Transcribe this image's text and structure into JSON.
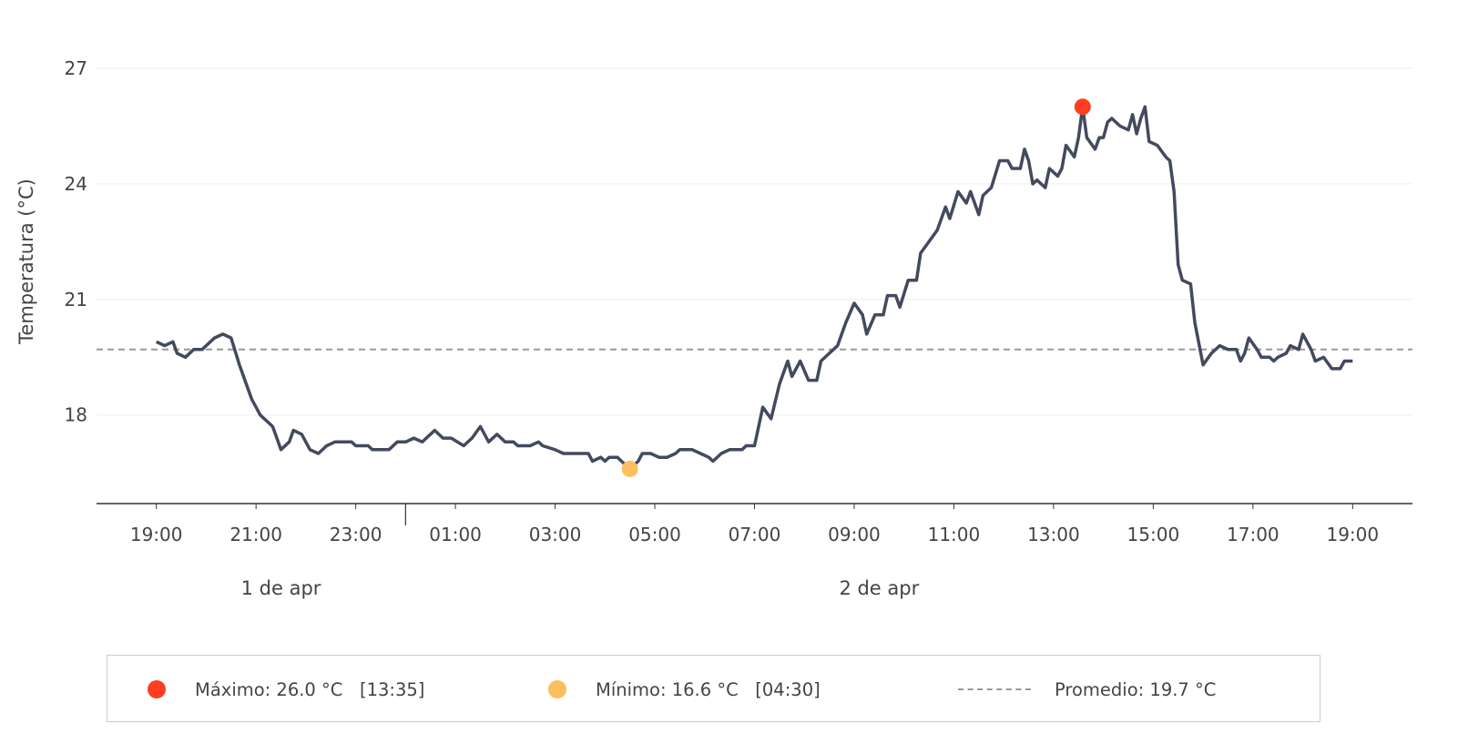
{
  "chart_data": {
    "type": "line",
    "ylabel": "Temperatura (°C)",
    "xlabel": "",
    "ylim": [
      15.7,
      28.3
    ],
    "xlim": [
      "04-01T17:48",
      "04-02T20:12"
    ],
    "yticks": [
      18,
      21,
      24,
      27
    ],
    "xtick_labels": [
      "19:00",
      "21:00",
      "23:00",
      "01:00",
      "03:00",
      "05:00",
      "07:00",
      "09:00",
      "11:00",
      "13:00",
      "15:00",
      "17:00",
      "19:00"
    ],
    "xtick_times": [
      "04-01T19:00",
      "04-01T21:00",
      "04-01T23:00",
      "04-02T01:00",
      "04-02T03:00",
      "04-02T05:00",
      "04-02T07:00",
      "04-02T09:00",
      "04-02T11:00",
      "04-02T13:00",
      "04-02T15:00",
      "04-02T17:00",
      "04-02T19:00"
    ],
    "date_labels": [
      {
        "label": "1 de apr",
        "center": "04-01T21:30"
      },
      {
        "label": "2 de apr",
        "center": "04-02T09:30"
      }
    ],
    "day_boundary": "04-02T00:00",
    "grid": "horizontal",
    "legend_placement": "bottom",
    "colors": {
      "line": "#434a5e",
      "max": "#ff3d21",
      "min": "#fdbe5e",
      "mean": "#999999",
      "grid": "#eeeeee"
    },
    "series": [
      {
        "points": [
          [
            "04-01T19:00",
            19.9
          ],
          [
            "04-01T19:10",
            19.8
          ],
          [
            "04-01T19:20",
            19.9
          ],
          [
            "04-01T19:25",
            19.6
          ],
          [
            "04-01T19:35",
            19.5
          ],
          [
            "04-01T19:45",
            19.7
          ],
          [
            "04-01T19:55",
            19.7
          ],
          [
            "04-01T20:10",
            20.0
          ],
          [
            "04-01T20:20",
            20.1
          ],
          [
            "04-01T20:30",
            20.0
          ],
          [
            "04-01T20:40",
            19.3
          ],
          [
            "04-01T20:50",
            18.7
          ],
          [
            "04-01T20:55",
            18.4
          ],
          [
            "04-01T21:00",
            18.2
          ],
          [
            "04-01T21:05",
            18.0
          ],
          [
            "04-01T21:20",
            17.7
          ],
          [
            "04-01T21:25",
            17.4
          ],
          [
            "04-01T21:30",
            17.1
          ],
          [
            "04-01T21:40",
            17.3
          ],
          [
            "04-01T21:45",
            17.6
          ],
          [
            "04-01T21:55",
            17.5
          ],
          [
            "04-01T22:05",
            17.1
          ],
          [
            "04-01T22:15",
            17.0
          ],
          [
            "04-01T22:25",
            17.2
          ],
          [
            "04-01T22:35",
            17.3
          ],
          [
            "04-01T22:55",
            17.3
          ],
          [
            "04-01T23:00",
            17.2
          ],
          [
            "04-01T23:15",
            17.2
          ],
          [
            "04-01T23:20",
            17.1
          ],
          [
            "04-01T23:40",
            17.1
          ],
          [
            "04-01T23:50",
            17.3
          ],
          [
            "04-02T00:00",
            17.3
          ],
          [
            "04-02T00:10",
            17.4
          ],
          [
            "04-02T00:20",
            17.3
          ],
          [
            "04-02T00:35",
            17.6
          ],
          [
            "04-02T00:45",
            17.4
          ],
          [
            "04-02T00:55",
            17.4
          ],
          [
            "04-02T01:10",
            17.2
          ],
          [
            "04-02T01:20",
            17.4
          ],
          [
            "04-02T01:30",
            17.7
          ],
          [
            "04-02T01:40",
            17.3
          ],
          [
            "04-02T01:50",
            17.5
          ],
          [
            "04-02T02:00",
            17.3
          ],
          [
            "04-02T02:10",
            17.3
          ],
          [
            "04-02T02:15",
            17.2
          ],
          [
            "04-02T02:30",
            17.2
          ],
          [
            "04-02T02:40",
            17.3
          ],
          [
            "04-02T02:45",
            17.2
          ],
          [
            "04-02T03:00",
            17.1
          ],
          [
            "04-02T03:10",
            17.0
          ],
          [
            "04-02T03:40",
            17.0
          ],
          [
            "04-02T03:45",
            16.8
          ],
          [
            "04-02T03:55",
            16.9
          ],
          [
            "04-02T04:00",
            16.8
          ],
          [
            "04-02T04:05",
            16.9
          ],
          [
            "04-02T04:15",
            16.9
          ],
          [
            "04-02T04:20",
            16.8
          ],
          [
            "04-02T04:30",
            16.6
          ],
          [
            "04-02T04:40",
            16.8
          ],
          [
            "04-02T04:45",
            17.0
          ],
          [
            "04-02T04:55",
            17.0
          ],
          [
            "04-02T05:05",
            16.9
          ],
          [
            "04-02T05:15",
            16.9
          ],
          [
            "04-02T05:25",
            17.0
          ],
          [
            "04-02T05:30",
            17.1
          ],
          [
            "04-02T05:45",
            17.1
          ],
          [
            "04-02T05:55",
            17.0
          ],
          [
            "04-02T06:05",
            16.9
          ],
          [
            "04-02T06:10",
            16.8
          ],
          [
            "04-02T06:20",
            17.0
          ],
          [
            "04-02T06:30",
            17.1
          ],
          [
            "04-02T06:45",
            17.1
          ],
          [
            "04-02T06:50",
            17.2
          ],
          [
            "04-02T07:00",
            17.2
          ],
          [
            "04-02T07:10",
            18.2
          ],
          [
            "04-02T07:20",
            17.9
          ],
          [
            "04-02T07:30",
            18.8
          ],
          [
            "04-02T07:40",
            19.4
          ],
          [
            "04-02T07:45",
            19.0
          ],
          [
            "04-02T07:55",
            19.4
          ],
          [
            "04-02T08:05",
            18.9
          ],
          [
            "04-02T08:15",
            18.9
          ],
          [
            "04-02T08:20",
            19.4
          ],
          [
            "04-02T08:30",
            19.6
          ],
          [
            "04-02T08:40",
            19.8
          ],
          [
            "04-02T08:50",
            20.4
          ],
          [
            "04-02T09:00",
            20.9
          ],
          [
            "04-02T09:10",
            20.6
          ],
          [
            "04-02T09:15",
            20.1
          ],
          [
            "04-02T09:25",
            20.6
          ],
          [
            "04-02T09:35",
            20.6
          ],
          [
            "04-02T09:40",
            21.1
          ],
          [
            "04-02T09:50",
            21.1
          ],
          [
            "04-02T09:55",
            20.8
          ],
          [
            "04-02T10:05",
            21.5
          ],
          [
            "04-02T10:15",
            21.5
          ],
          [
            "04-02T10:20",
            22.2
          ],
          [
            "04-02T10:30",
            22.5
          ],
          [
            "04-02T10:40",
            22.8
          ],
          [
            "04-02T10:50",
            23.4
          ],
          [
            "04-02T10:55",
            23.1
          ],
          [
            "04-02T11:05",
            23.8
          ],
          [
            "04-02T11:15",
            23.5
          ],
          [
            "04-02T11:20",
            23.8
          ],
          [
            "04-02T11:30",
            23.2
          ],
          [
            "04-02T11:35",
            23.7
          ],
          [
            "04-02T11:45",
            23.9
          ],
          [
            "04-02T11:55",
            24.6
          ],
          [
            "04-02T12:05",
            24.6
          ],
          [
            "04-02T12:10",
            24.4
          ],
          [
            "04-02T12:20",
            24.4
          ],
          [
            "04-02T12:25",
            24.9
          ],
          [
            "04-02T12:30",
            24.6
          ],
          [
            "04-02T12:35",
            24.0
          ],
          [
            "04-02T12:40",
            24.1
          ],
          [
            "04-02T12:50",
            23.9
          ],
          [
            "04-02T12:55",
            24.4
          ],
          [
            "04-02T13:05",
            24.2
          ],
          [
            "04-02T13:10",
            24.4
          ],
          [
            "04-02T13:15",
            25.0
          ],
          [
            "04-02T13:25",
            24.7
          ],
          [
            "04-02T13:30",
            25.2
          ],
          [
            "04-02T13:35",
            26.0
          ],
          [
            "04-02T13:40",
            25.2
          ],
          [
            "04-02T13:50",
            24.9
          ],
          [
            "04-02T13:55",
            25.2
          ],
          [
            "04-02T14:00",
            25.2
          ],
          [
            "04-02T14:05",
            25.6
          ],
          [
            "04-02T14:10",
            25.7
          ],
          [
            "04-02T14:20",
            25.5
          ],
          [
            "04-02T14:30",
            25.4
          ],
          [
            "04-02T14:35",
            25.8
          ],
          [
            "04-02T14:40",
            25.3
          ],
          [
            "04-02T14:45",
            25.7
          ],
          [
            "04-02T14:50",
            26.0
          ],
          [
            "04-02T14:55",
            25.1
          ],
          [
            "04-02T15:05",
            25.0
          ],
          [
            "04-02T15:15",
            24.7
          ],
          [
            "04-02T15:20",
            24.6
          ],
          [
            "04-02T15:25",
            23.8
          ],
          [
            "04-02T15:30",
            21.9
          ],
          [
            "04-02T15:35",
            21.5
          ],
          [
            "04-02T15:45",
            21.4
          ],
          [
            "04-02T15:50",
            20.4
          ],
          [
            "04-02T16:00",
            19.3
          ],
          [
            "04-02T16:10",
            19.6
          ],
          [
            "04-02T16:20",
            19.8
          ],
          [
            "04-02T16:30",
            19.7
          ],
          [
            "04-02T16:40",
            19.7
          ],
          [
            "04-02T16:45",
            19.4
          ],
          [
            "04-02T16:50",
            19.6
          ],
          [
            "04-02T16:55",
            20.0
          ],
          [
            "04-02T17:05",
            19.7
          ],
          [
            "04-02T17:10",
            19.5
          ],
          [
            "04-02T17:20",
            19.5
          ],
          [
            "04-02T17:25",
            19.4
          ],
          [
            "04-02T17:30",
            19.5
          ],
          [
            "04-02T17:40",
            19.6
          ],
          [
            "04-02T17:45",
            19.8
          ],
          [
            "04-02T17:55",
            19.7
          ],
          [
            "04-02T18:00",
            20.1
          ],
          [
            "04-02T18:10",
            19.7
          ],
          [
            "04-02T18:15",
            19.4
          ],
          [
            "04-02T18:25",
            19.5
          ],
          [
            "04-02T18:35",
            19.2
          ],
          [
            "04-02T18:45",
            19.2
          ],
          [
            "04-02T18:50",
            19.4
          ],
          [
            "04-02T19:00",
            19.4
          ]
        ]
      }
    ],
    "max_point": [
      "04-02T13:35",
      26.0
    ],
    "min_point": [
      "04-02T04:30",
      16.6
    ],
    "mean": 19.7
  },
  "legend": {
    "max_label": "Máximo: 26.0 °C   [13:35]",
    "min_label": "Mínimo: 16.6 °C   [04:30]",
    "mean_label": "Promedio: 19.7 °C"
  }
}
